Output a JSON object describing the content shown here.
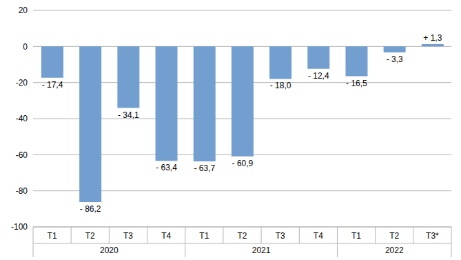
{
  "chart_data": {
    "type": "bar",
    "categories": [
      "T1",
      "T2",
      "T3",
      "T4",
      "T1",
      "T2",
      "T3",
      "T4",
      "T1",
      "T2",
      "T3*"
    ],
    "groups": [
      {
        "label": "2020",
        "count": 4
      },
      {
        "label": "2021",
        "count": 4
      },
      {
        "label": "2022",
        "count": 3
      }
    ],
    "values": [
      -17.4,
      -86.2,
      -34.1,
      -63.4,
      -63.7,
      -60.9,
      -18.0,
      -12.4,
      -16.5,
      -3.3,
      1.3
    ],
    "value_labels": [
      "- 17,4",
      "- 86,2",
      "- 34,1",
      "- 63,4",
      "- 63,7",
      "- 60,9",
      "- 18,0",
      "- 12,4",
      "- 16,5",
      "- 3,3",
      "+ 1,3"
    ],
    "data_labels": true,
    "color": "#729fcf",
    "ylim": [
      -100,
      20
    ],
    "yticks": [
      -100,
      -80,
      -60,
      -40,
      -20,
      0,
      20
    ],
    "grid": true
  }
}
